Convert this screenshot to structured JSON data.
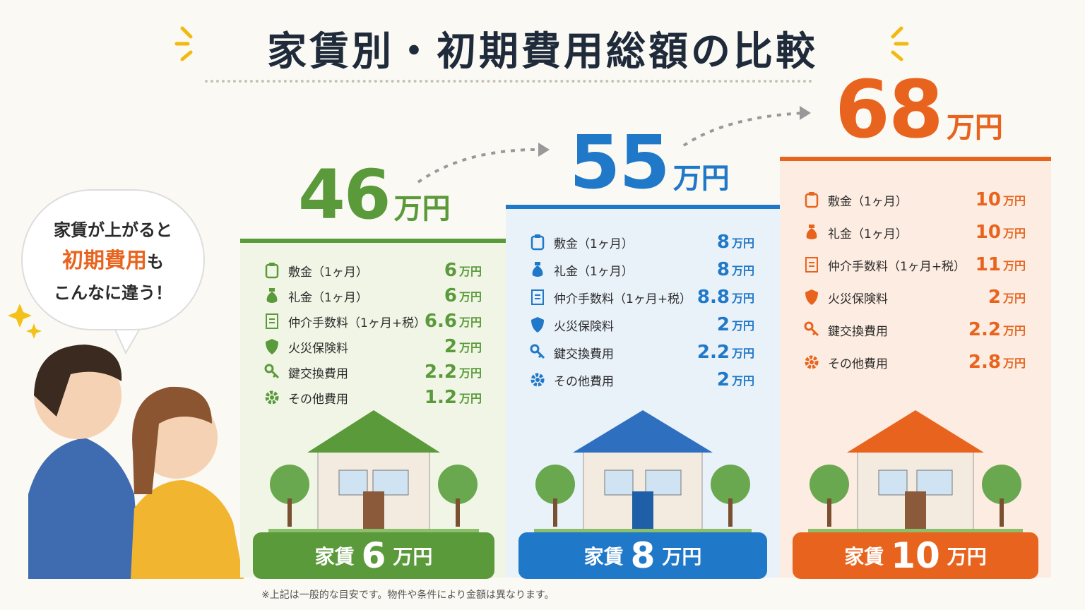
{
  "title": "家賃別・初期費用総額の比較",
  "bubble": {
    "line1": "家賃が上がると",
    "highlight": "初期費用",
    "line2_rest": "も",
    "line3": "こんなに違う！"
  },
  "unit": "万円",
  "rent_label": "家賃",
  "plans": [
    {
      "total": "46",
      "rent": "6",
      "items": [
        {
          "label": "敷金（1ヶ月）",
          "amount": "6"
        },
        {
          "label": "礼金（1ヶ月）",
          "amount": "6"
        },
        {
          "label": "仲介手数料（1ヶ月+税）",
          "amount": "6.6"
        },
        {
          "label": "火災保険料",
          "amount": "2"
        },
        {
          "label": "鍵交換費用",
          "amount": "2.2"
        },
        {
          "label": "その他費用",
          "amount": "1.2"
        }
      ]
    },
    {
      "total": "55",
      "rent": "8",
      "items": [
        {
          "label": "敷金（1ヶ月）",
          "amount": "8"
        },
        {
          "label": "礼金（1ヶ月）",
          "amount": "8"
        },
        {
          "label": "仲介手数料（1ヶ月+税）",
          "amount": "8.8"
        },
        {
          "label": "火災保険料",
          "amount": "2"
        },
        {
          "label": "鍵交換費用",
          "amount": "2.2"
        },
        {
          "label": "その他費用",
          "amount": "2"
        }
      ]
    },
    {
      "total": "68",
      "rent": "10",
      "items": [
        {
          "label": "敷金（1ヶ月）",
          "amount": "10"
        },
        {
          "label": "礼金（1ヶ月）",
          "amount": "10"
        },
        {
          "label": "仲介手数料（1ヶ月+税）",
          "amount": "11"
        },
        {
          "label": "火災保険料",
          "amount": "2"
        },
        {
          "label": "鍵交換費用",
          "amount": "2.2"
        },
        {
          "label": "その他費用",
          "amount": "2.8"
        }
      ]
    }
  ],
  "footnote": "※上記は一般的な目安です。物件や条件により金額は異なります。"
}
